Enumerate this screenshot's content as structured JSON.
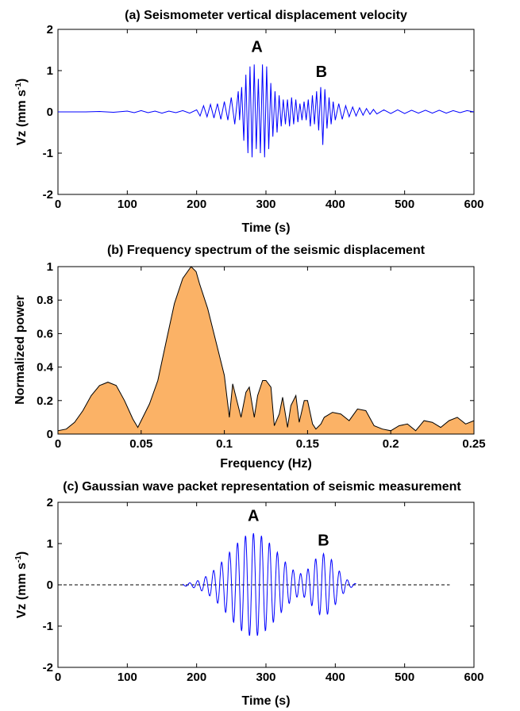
{
  "chart_data": [
    {
      "id": "a",
      "type": "line",
      "title": "(a) Seismometer vertical displacement velocity",
      "xlabel": "Time (s)",
      "ylabel": "Vz (mm s",
      "ylabel_sup": "-1",
      "ylabel_close": ")",
      "xlim": [
        0,
        600
      ],
      "ylim": [
        -2,
        2
      ],
      "xticks": [
        0,
        100,
        200,
        300,
        400,
        500,
        600
      ],
      "yticks": [
        -2,
        -1,
        0,
        1,
        2
      ],
      "series_color": "#0000ff",
      "annotations": [
        {
          "text": "A",
          "x": 287,
          "y": 1.45
        },
        {
          "text": "B",
          "x": 380,
          "y": 0.85
        }
      ],
      "series": [
        {
          "x": [
            0,
            20,
            40,
            60,
            80,
            100,
            110,
            120,
            130,
            140,
            150,
            160,
            170,
            180,
            190,
            200,
            205,
            210,
            215,
            220,
            225,
            230,
            235,
            240,
            245,
            250,
            255,
            260,
            262,
            265,
            268,
            271,
            274,
            277,
            280,
            283,
            286,
            289,
            292,
            295,
            298,
            301,
            304,
            307,
            310,
            313,
            316,
            319,
            322,
            325,
            328,
            331,
            334,
            337,
            340,
            343,
            346,
            349,
            352,
            355,
            358,
            361,
            364,
            367,
            370,
            373,
            376,
            379,
            382,
            385,
            388,
            391,
            394,
            397,
            400,
            405,
            410,
            415,
            420,
            425,
            430,
            435,
            440,
            445,
            450,
            455,
            460,
            470,
            480,
            490,
            500,
            510,
            520,
            530,
            540,
            550,
            560,
            570,
            580,
            590,
            600
          ],
          "y": [
            0,
            0,
            0,
            0.01,
            -0.01,
            0.02,
            -0.02,
            0.03,
            -0.02,
            0.02,
            -0.03,
            0.02,
            -0.02,
            0.03,
            -0.03,
            0.05,
            -0.1,
            0.15,
            -0.12,
            0.18,
            -0.15,
            0.2,
            -0.18,
            0.25,
            -0.2,
            0.35,
            -0.3,
            0.5,
            -0.2,
            0.6,
            -0.7,
            0.9,
            -1.0,
            1.1,
            -1.1,
            1.15,
            -0.9,
            0.8,
            -1.0,
            1.15,
            -1.1,
            1.1,
            -0.9,
            0.7,
            -0.6,
            0.5,
            -0.5,
            0.4,
            -0.35,
            0.3,
            -0.3,
            0.3,
            -0.35,
            0.35,
            -0.3,
            0.3,
            -0.25,
            0.2,
            -0.2,
            0.25,
            -0.2,
            0.3,
            -0.35,
            0.4,
            -0.3,
            0.5,
            -0.45,
            0.6,
            -0.8,
            0.55,
            -0.4,
            0.35,
            -0.3,
            0.25,
            -0.2,
            0.2,
            -0.18,
            0.15,
            -0.12,
            0.12,
            -0.1,
            0.1,
            -0.08,
            0.08,
            -0.06,
            0.06,
            -0.05,
            0.05,
            -0.04,
            0.05,
            -0.04,
            0.04,
            -0.03,
            0.04,
            -0.03,
            0.04,
            -0.03,
            0.03,
            -0.02,
            0.03,
            0
          ]
        }
      ]
    },
    {
      "id": "b",
      "type": "area",
      "title": "(b) Frequency spectrum of the seismic displacement",
      "xlabel": "Frequency (Hz)",
      "ylabel": "Normalized power",
      "xlim": [
        0,
        0.25
      ],
      "ylim": [
        0,
        1
      ],
      "xticks": [
        0,
        0.05,
        0.1,
        0.15,
        0.2,
        0.25
      ],
      "xtick_labels": [
        "0",
        "0.05",
        "0.1",
        "0.15",
        "0.2",
        "0.25"
      ],
      "yticks": [
        0,
        0.2,
        0.4,
        0.6,
        0.8,
        1
      ],
      "ytick_labels": [
        "0",
        "0.2",
        "0.4",
        "0.6",
        "0.8",
        "1"
      ],
      "fill_color": "#fbb266",
      "line_color": "#000000",
      "series": [
        {
          "x": [
            0,
            0.005,
            0.01,
            0.015,
            0.02,
            0.025,
            0.03,
            0.035,
            0.04,
            0.045,
            0.048,
            0.05,
            0.055,
            0.06,
            0.065,
            0.07,
            0.075,
            0.08,
            0.083,
            0.085,
            0.09,
            0.095,
            0.1,
            0.103,
            0.105,
            0.107,
            0.11,
            0.113,
            0.115,
            0.118,
            0.12,
            0.123,
            0.125,
            0.128,
            0.13,
            0.133,
            0.135,
            0.138,
            0.14,
            0.143,
            0.145,
            0.148,
            0.15,
            0.153,
            0.155,
            0.158,
            0.16,
            0.165,
            0.17,
            0.175,
            0.18,
            0.185,
            0.19,
            0.195,
            0.2,
            0.205,
            0.21,
            0.215,
            0.22,
            0.225,
            0.23,
            0.235,
            0.24,
            0.245,
            0.25
          ],
          "y": [
            0.02,
            0.03,
            0.07,
            0.14,
            0.23,
            0.29,
            0.31,
            0.29,
            0.2,
            0.09,
            0.04,
            0.08,
            0.18,
            0.32,
            0.55,
            0.78,
            0.93,
            1.0,
            0.97,
            0.9,
            0.75,
            0.55,
            0.35,
            0.1,
            0.3,
            0.22,
            0.1,
            0.25,
            0.28,
            0.1,
            0.23,
            0.32,
            0.32,
            0.28,
            0.05,
            0.12,
            0.22,
            0.04,
            0.17,
            0.23,
            0.07,
            0.2,
            0.2,
            0.06,
            0.03,
            0.06,
            0.1,
            0.13,
            0.12,
            0.08,
            0.15,
            0.14,
            0.05,
            0.03,
            0.02,
            0.05,
            0.06,
            0.02,
            0.08,
            0.07,
            0.04,
            0.08,
            0.1,
            0.06,
            0.08
          ]
        }
      ]
    },
    {
      "id": "c",
      "type": "line",
      "title": "(c) Gaussian wave packet representation of seismic measurement",
      "xlabel": "Time (s)",
      "ylabel": "Vz (mm s",
      "ylabel_sup": "-1",
      "ylabel_close": ")",
      "xlim": [
        0,
        600
      ],
      "ylim": [
        -2,
        2
      ],
      "xticks": [
        0,
        100,
        200,
        300,
        400,
        500,
        600
      ],
      "yticks": [
        -2,
        -1,
        0,
        1,
        2
      ],
      "series_color": "#0000ff",
      "dashed_color": "#000000",
      "annotations": [
        {
          "text": "A",
          "x": 282,
          "y": 1.55
        },
        {
          "text": "B",
          "x": 383,
          "y": 0.95
        }
      ],
      "packets": [
        {
          "amplitude": 1.25,
          "center": 282,
          "sigma": 36,
          "period": 11.5
        },
        {
          "amplitude": 0.75,
          "center": 383,
          "sigma": 18,
          "period": 11.5
        }
      ],
      "signal_range": [
        180,
        430
      ],
      "dashed_extent": [
        0,
        565
      ]
    }
  ]
}
